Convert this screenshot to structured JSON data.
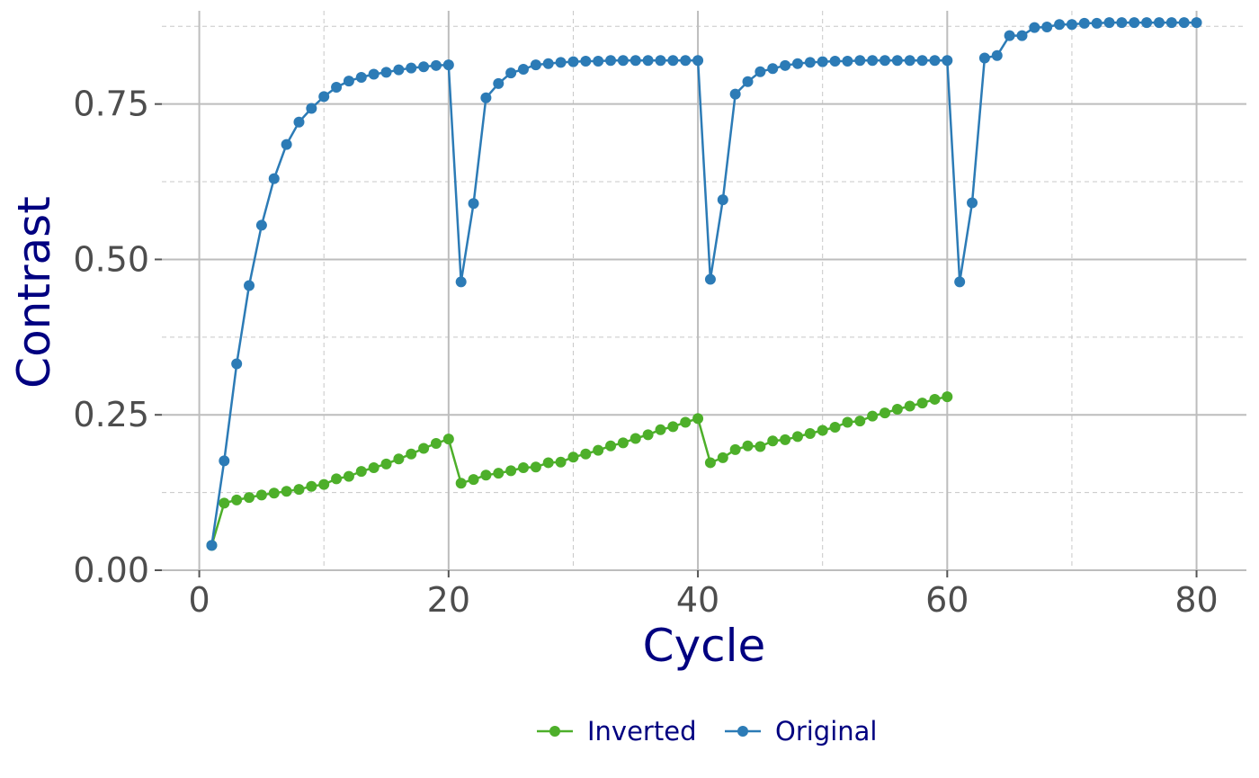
{
  "chart_data": {
    "type": "line",
    "title": "",
    "xlabel": "Cycle",
    "ylabel": "Contrast",
    "xlim": [
      -3,
      84
    ],
    "ylim": [
      0,
      0.9
    ],
    "x_ticks": [
      0,
      20,
      40,
      60,
      80
    ],
    "x_tick_labels": [
      "0",
      "20",
      "40",
      "60",
      "80"
    ],
    "x_minor_ticks": [
      10,
      30,
      50,
      70
    ],
    "y_ticks": [
      0,
      0.25,
      0.5,
      0.75
    ],
    "y_tick_labels": [
      "0.00",
      "0.25",
      "0.50",
      "0.75"
    ],
    "y_minor_ticks": [
      0.125,
      0.375,
      0.625,
      0.875
    ],
    "grid": true,
    "legend_position": "bottom",
    "label_color": "#000080",
    "series": [
      {
        "name": "Inverted",
        "color": "#4daf2a",
        "x": [
          1,
          2,
          3,
          4,
          5,
          6,
          7,
          8,
          9,
          10,
          11,
          12,
          13,
          14,
          15,
          16,
          17,
          18,
          19,
          20,
          21,
          22,
          23,
          24,
          25,
          26,
          27,
          28,
          29,
          30,
          31,
          32,
          33,
          34,
          35,
          36,
          37,
          38,
          39,
          40,
          41,
          42,
          43,
          44,
          45,
          46,
          47,
          48,
          49,
          50,
          51,
          52,
          53,
          54,
          55,
          56,
          57,
          58,
          59,
          60
        ],
        "values": [
          0.04,
          0.108,
          0.113,
          0.117,
          0.121,
          0.124,
          0.127,
          0.13,
          0.135,
          0.138,
          0.147,
          0.151,
          0.159,
          0.165,
          0.171,
          0.179,
          0.187,
          0.196,
          0.204,
          0.211,
          0.14,
          0.146,
          0.153,
          0.156,
          0.16,
          0.165,
          0.166,
          0.173,
          0.174,
          0.182,
          0.187,
          0.193,
          0.2,
          0.205,
          0.212,
          0.218,
          0.226,
          0.231,
          0.238,
          0.244,
          0.173,
          0.181,
          0.194,
          0.2,
          0.199,
          0.208,
          0.21,
          0.215,
          0.22,
          0.225,
          0.23,
          0.238,
          0.24,
          0.248,
          0.253,
          0.259,
          0.264,
          0.269,
          0.275,
          0.279
        ]
      },
      {
        "name": "Original",
        "color": "#2c7bb6",
        "x": [
          1,
          2,
          3,
          4,
          5,
          6,
          7,
          8,
          9,
          10,
          11,
          12,
          13,
          14,
          15,
          16,
          17,
          18,
          19,
          20,
          21,
          22,
          23,
          24,
          25,
          26,
          27,
          28,
          29,
          30,
          31,
          32,
          33,
          34,
          35,
          36,
          37,
          38,
          39,
          40,
          41,
          42,
          43,
          44,
          45,
          46,
          47,
          48,
          49,
          50,
          51,
          52,
          53,
          54,
          55,
          56,
          57,
          58,
          59,
          60,
          61,
          62,
          63,
          64,
          65,
          66,
          67,
          68,
          69,
          70,
          71,
          72,
          73,
          74,
          75,
          76,
          77,
          78,
          79,
          80
        ],
        "values": [
          0.04,
          0.176,
          0.332,
          0.458,
          0.555,
          0.63,
          0.685,
          0.721,
          0.743,
          0.762,
          0.777,
          0.787,
          0.793,
          0.798,
          0.801,
          0.805,
          0.808,
          0.81,
          0.812,
          0.813,
          0.464,
          0.59,
          0.76,
          0.783,
          0.8,
          0.806,
          0.813,
          0.815,
          0.817,
          0.818,
          0.819,
          0.819,
          0.82,
          0.82,
          0.82,
          0.82,
          0.82,
          0.82,
          0.82,
          0.82,
          0.468,
          0.596,
          0.766,
          0.786,
          0.802,
          0.807,
          0.812,
          0.815,
          0.817,
          0.818,
          0.819,
          0.819,
          0.82,
          0.82,
          0.82,
          0.82,
          0.82,
          0.82,
          0.82,
          0.82,
          0.464,
          0.591,
          0.824,
          0.828,
          0.86,
          0.86,
          0.873,
          0.874,
          0.878,
          0.878,
          0.88,
          0.88,
          0.881,
          0.881,
          0.881,
          0.881,
          0.881,
          0.881,
          0.881,
          0.881
        ]
      }
    ]
  }
}
